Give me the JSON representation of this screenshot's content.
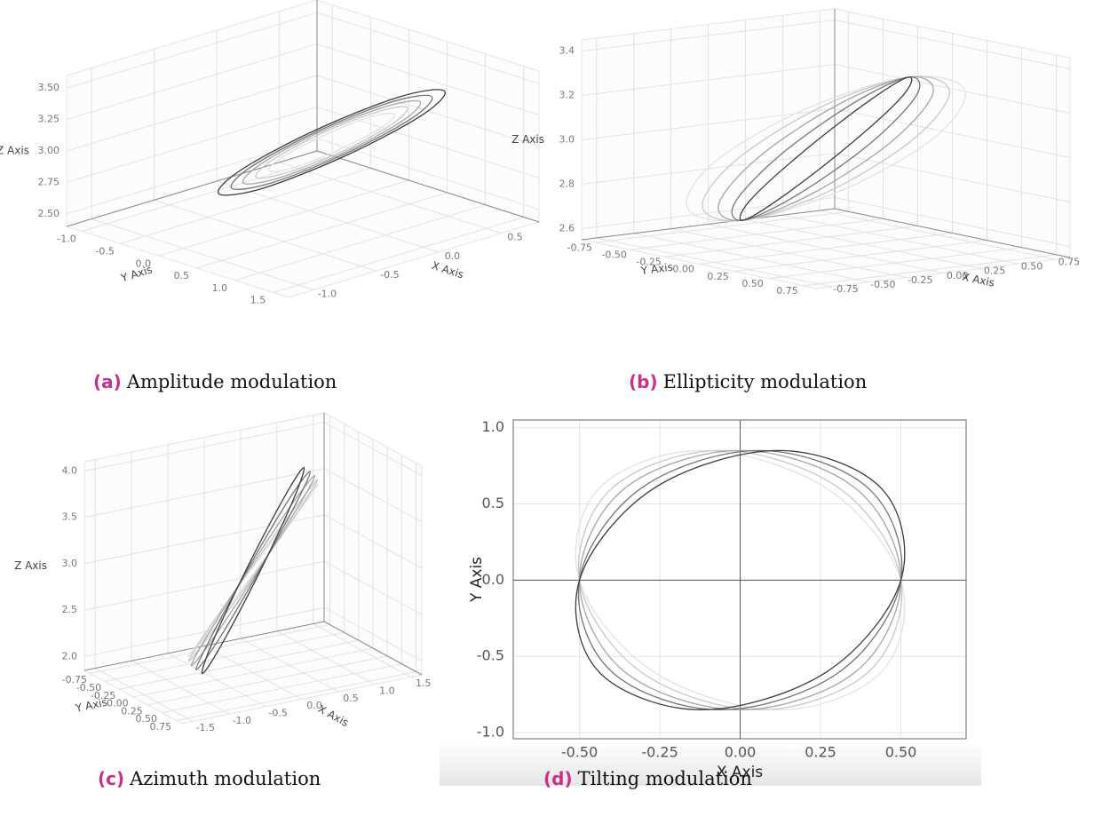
{
  "chart_data": [
    {
      "type": "line3d",
      "label": "(a)",
      "caption": "Amplitude modulation",
      "xlabel": "X Axis",
      "ylabel": "Y Axis",
      "zlabel": "Z Axis",
      "xlim": [
        -1.2,
        0.8
      ],
      "ylim": [
        -1.2,
        1.7
      ],
      "zlim": [
        2.4,
        3.6
      ],
      "xticks": [
        {
          "value": -1,
          "label": "-1.0"
        },
        -0.5,
        {
          "value": 0,
          "label": "0.0"
        },
        0.5
      ],
      "yticks": [
        {
          "value": -1,
          "label": "-1.0"
        },
        -0.5,
        {
          "value": 0,
          "label": "0.0"
        },
        0.5,
        {
          "value": 1,
          "label": "1.0"
        },
        1.5
      ],
      "zticks": [
        {
          "value": 2.5,
          "label": "2.50"
        },
        2.75,
        {
          "value": 3,
          "label": "3.00"
        },
        3.25,
        {
          "value": 3.5,
          "label": "3.50"
        }
      ],
      "grid": true,
      "series": [
        {
          "color": "#e2e2e2",
          "x": [
            0,
            0.28,
            0.4,
            0.28,
            0,
            -0.28,
            -0.4,
            -0.28
          ],
          "y": [
            0.8,
            0.66,
            0.3,
            -0.06,
            -0.2,
            -0.06,
            0.3,
            0.66
          ],
          "z": [
            3.3,
            3.21,
            3,
            2.79,
            2.7,
            2.79,
            3,
            3.21
          ]
        },
        {
          "color": "#c8c8c8",
          "x": [
            0,
            0.34,
            0.48,
            0.34,
            0,
            -0.34,
            -0.48,
            -0.34
          ],
          "y": [
            0.9,
            0.73,
            0.3,
            -0.13,
            -0.3,
            -0.13,
            0.3,
            0.73
          ],
          "z": [
            3.36,
            3.26,
            3,
            2.74,
            2.64,
            2.74,
            3,
            3.26
          ]
        },
        {
          "color": "#a4a4a4",
          "x": [
            0,
            0.4,
            0.56,
            0.4,
            0,
            -0.4,
            -0.56,
            -0.4
          ],
          "y": [
            1,
            0.8,
            0.3,
            -0.2,
            -0.4,
            -0.2,
            0.3,
            0.8
          ],
          "z": [
            3.42,
            3.3,
            3,
            2.7,
            2.58,
            2.7,
            3,
            3.3
          ]
        },
        {
          "color": "#747474",
          "x": [
            0,
            0.45,
            0.64,
            0.45,
            0,
            -0.45,
            -0.64,
            -0.45
          ],
          "y": [
            1.1,
            0.87,
            0.3,
            -0.27,
            -0.5,
            -0.27,
            0.3,
            0.87
          ],
          "z": [
            3.48,
            3.34,
            3,
            2.66,
            2.52,
            2.66,
            3,
            3.34
          ]
        },
        {
          "color": "#3c3c3c",
          "x": [
            0,
            0.51,
            0.72,
            0.51,
            0,
            -0.51,
            -0.72,
            -0.51
          ],
          "y": [
            1.2,
            0.94,
            0.3,
            -0.34,
            -0.6,
            -0.34,
            0.3,
            0.94
          ],
          "z": [
            3.54,
            3.38,
            3,
            2.62,
            2.46,
            2.62,
            3,
            3.38
          ]
        }
      ]
    },
    {
      "type": "line3d",
      "label": "(b)",
      "caption": "Ellipticity modulation",
      "xlabel": "X Axis",
      "ylabel": "Y Axis",
      "zlabel": "Z Axis",
      "xlim": [
        -0.85,
        0.85
      ],
      "ylim": [
        -0.85,
        0.85
      ],
      "zlim": [
        2.55,
        3.45
      ],
      "xticks": [
        -0.75,
        {
          "value": -0.5,
          "label": "-0.50"
        },
        -0.25,
        {
          "value": 0,
          "label": "0.00"
        },
        0.25,
        {
          "value": 0.5,
          "label": "0.50"
        },
        0.75
      ],
      "yticks": [
        -0.75,
        {
          "value": -0.5,
          "label": "-0.50"
        },
        -0.25,
        {
          "value": 0,
          "label": "0.00"
        },
        0.25,
        {
          "value": 0.5,
          "label": "0.50"
        },
        0.75
      ],
      "zticks": [
        2.6,
        2.8,
        {
          "value": 3,
          "label": "3.0"
        },
        3.2,
        3.4
      ],
      "grid": true,
      "series": [
        {
          "color": "#e2e2e2",
          "x": [
            0,
            0.53,
            0.75,
            0.53,
            0,
            -0.53,
            -0.75,
            -0.53
          ],
          "y": [
            0.6,
            0.43,
            0,
            -0.43,
            -0.6,
            -0.43,
            0,
            0.43
          ],
          "z": [
            3.4,
            3.28,
            3,
            2.72,
            2.6,
            2.72,
            3,
            3.28
          ]
        },
        {
          "color": "#c8c8c8",
          "x": [
            0,
            0.43,
            0.6,
            0.43,
            0,
            -0.43,
            -0.6,
            -0.43
          ],
          "y": [
            0.6,
            0.43,
            0,
            -0.43,
            -0.6,
            -0.43,
            0,
            0.43
          ],
          "z": [
            3.4,
            3.28,
            3,
            2.72,
            2.6,
            2.72,
            3,
            3.28
          ]
        },
        {
          "color": "#a4a4a4",
          "x": [
            0,
            0.32,
            0.45,
            0.32,
            0,
            -0.32,
            -0.45,
            -0.32
          ],
          "y": [
            0.6,
            0.43,
            0,
            -0.43,
            -0.6,
            -0.43,
            0,
            0.43
          ],
          "z": [
            3.4,
            3.28,
            3,
            2.72,
            2.6,
            2.72,
            3,
            3.28
          ]
        },
        {
          "color": "#747474",
          "x": [
            0,
            0.21,
            0.3,
            0.21,
            0,
            -0.21,
            -0.3,
            -0.21
          ],
          "y": [
            0.6,
            0.43,
            0,
            -0.43,
            -0.6,
            -0.43,
            0,
            0.43
          ],
          "z": [
            3.4,
            3.28,
            3,
            2.72,
            2.6,
            2.72,
            3,
            3.28
          ]
        },
        {
          "color": "#3c3c3c",
          "x": [
            0,
            0.11,
            0.15,
            0.11,
            0,
            -0.11,
            -0.15,
            -0.11
          ],
          "y": [
            0.6,
            0.43,
            0,
            -0.43,
            -0.6,
            -0.43,
            0,
            0.43
          ],
          "z": [
            3.4,
            3.28,
            3,
            2.72,
            2.6,
            2.72,
            3,
            3.28
          ]
        }
      ]
    },
    {
      "type": "line3d",
      "label": "(c)",
      "caption": "Azimuth modulation",
      "xlabel": "X Axis",
      "ylabel": "Y Axis",
      "zlabel": "Z Axis",
      "xlim": [
        -1.65,
        1.65
      ],
      "ylim": [
        -0.85,
        0.85
      ],
      "zlim": [
        1.85,
        4.1
      ],
      "xticks": [
        -1.5,
        {
          "value": -1,
          "label": "-1.0"
        },
        -0.5,
        {
          "value": 0,
          "label": "0.0"
        },
        0.5,
        {
          "value": 1,
          "label": "1.0"
        },
        1.5
      ],
      "yticks": [
        -0.75,
        {
          "value": -0.5,
          "label": "-0.50"
        },
        -0.25,
        {
          "value": 0,
          "label": "0.00"
        },
        0.25,
        {
          "value": 0.5,
          "label": "0.50"
        },
        0.75
      ],
      "zticks": [
        {
          "value": 2,
          "label": "2.0"
        },
        2.5,
        {
          "value": 3,
          "label": "3.0"
        },
        3.5,
        {
          "value": 4,
          "label": "4.0"
        }
      ],
      "grid": true,
      "series": [
        {
          "color": "#e2e2e2",
          "x": [
            0.54,
            0.34,
            -0.06,
            -0.43,
            -0.54,
            -0.34,
            0.06,
            0.43
          ],
          "y": [
            0.45,
            0.37,
            0.08,
            -0.26,
            -0.45,
            -0.37,
            -0.08,
            0.26
          ],
          "z": [
            3.95,
            3.66,
            2.95,
            2.24,
            1.95,
            2.24,
            2.95,
            3.66
          ]
        },
        {
          "color": "#c8c8c8",
          "x": [
            0.61,
            0.4,
            -0.05,
            -0.47,
            -0.61,
            -0.4,
            0.05,
            0.47
          ],
          "y": [
            0.35,
            0.31,
            0.09,
            -0.19,
            -0.35,
            -0.31,
            -0.09,
            0.19
          ],
          "z": [
            3.95,
            3.66,
            2.95,
            2.24,
            1.95,
            2.24,
            2.95,
            3.66
          ]
        },
        {
          "color": "#a4a4a4",
          "x": [
            0.66,
            0.44,
            -0.03,
            -0.49,
            -0.66,
            -0.44,
            0.03,
            0.49
          ],
          "y": [
            0.24,
            0.24,
            0.09,
            -0.1,
            -0.24,
            -0.24,
            -0.09,
            0.1
          ],
          "z": [
            3.95,
            3.66,
            2.95,
            2.24,
            1.95,
            2.24,
            2.95,
            3.66
          ]
        },
        {
          "color": "#747474",
          "x": [
            0.69,
            0.48,
            -0.02,
            -0.5,
            -0.69,
            -0.47,
            0.02,
            0.5
          ],
          "y": [
            0.12,
            0.15,
            0.1,
            -0.01,
            -0.12,
            -0.15,
            -0.1,
            0.01
          ],
          "z": [
            3.95,
            3.66,
            2.95,
            2.24,
            1.95,
            2.24,
            2.95,
            3.66
          ]
        },
        {
          "color": "#3c3c3c",
          "x": [
            0.7,
            0.5,
            0,
            -0.5,
            -0.7,
            -0.5,
            0,
            0.5
          ],
          "y": [
            0,
            0.07,
            0.1,
            0.07,
            0,
            -0.07,
            -0.1,
            -0.07
          ],
          "z": [
            3.95,
            3.66,
            2.95,
            2.24,
            1.95,
            2.24,
            2.95,
            3.66
          ]
        }
      ]
    },
    {
      "type": "line",
      "label": "(d)",
      "caption": "Tilting modulation",
      "xlabel": "X Axis",
      "ylabel": "Y Axis",
      "xlim": [
        -0.706,
        0.703
      ],
      "ylim": [
        -1.04,
        1.05
      ],
      "xticks": [
        {
          "value": -0.5,
          "label": "-0.50"
        },
        -0.25,
        {
          "value": 0,
          "label": "0.00"
        },
        0.25,
        {
          "value": 0.5,
          "label": "0.50"
        }
      ],
      "yticks": [
        {
          "value": -1,
          "label": "-1.0"
        },
        -0.5,
        {
          "value": 0,
          "label": "0.0"
        },
        0.5,
        {
          "value": 1,
          "label": "1.0"
        }
      ],
      "grid": true,
      "zero_lines": true,
      "series": [
        {
          "color": "#e2e2e2",
          "x": [
            0.5,
            0.27,
            -0.12,
            -0.44,
            -0.5,
            -0.27,
            0.12,
            0.44
          ],
          "y": [
            0,
            0.6,
            0.85,
            0.6,
            0,
            -0.6,
            -0.85,
            -0.6
          ]
        },
        {
          "color": "#c8c8c8",
          "x": [
            0.5,
            0.31,
            -0.06,
            -0.4,
            -0.5,
            -0.31,
            0.06,
            0.4
          ],
          "y": [
            0,
            0.6,
            0.85,
            0.6,
            0,
            -0.6,
            -0.85,
            -0.6
          ]
        },
        {
          "color": "#a4a4a4",
          "x": [
            0.5,
            0.36,
            0,
            -0.36,
            -0.5,
            -0.36,
            0,
            0.36
          ],
          "y": [
            0,
            0.6,
            0.85,
            0.6,
            0,
            -0.6,
            -0.85,
            -0.6
          ]
        },
        {
          "color": "#747474",
          "x": [
            0.5,
            0.4,
            0.06,
            -0.31,
            -0.5,
            -0.4,
            -0.06,
            0.31
          ],
          "y": [
            0,
            0.6,
            0.85,
            0.6,
            0,
            -0.6,
            -0.85,
            -0.6
          ]
        },
        {
          "color": "#3c3c3c",
          "x": [
            0.5,
            0.44,
            0.12,
            -0.27,
            -0.5,
            -0.44,
            -0.12,
            0.27
          ],
          "y": [
            0,
            0.6,
            0.85,
            0.6,
            0,
            -0.6,
            -0.85,
            -0.6
          ]
        }
      ]
    }
  ]
}
